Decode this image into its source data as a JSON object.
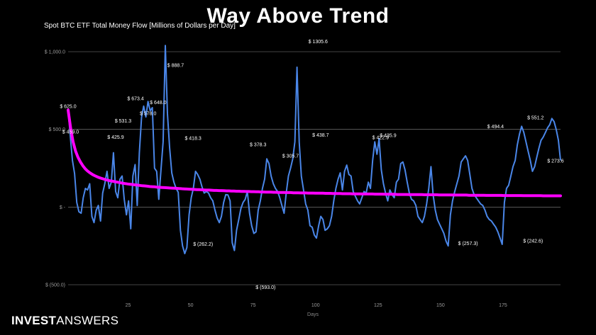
{
  "headline": "Way Above Trend",
  "subtitle": "Spot BTC ETF Total Money Flow [Millions of Dollars per Day]",
  "branding": {
    "part1": "INVEST",
    "part2": "ANSWERS"
  },
  "colors": {
    "background": "#000000",
    "flow": "#4a86e8",
    "trend": "#ff00ff",
    "grid": "#8a8a8a"
  },
  "chart_data": {
    "type": "line",
    "xlabel": "Days",
    "ylabel": "",
    "x_ticks": [
      25,
      50,
      75,
      100,
      125,
      150,
      175
    ],
    "y_ticks": [
      {
        "value": 1000,
        "label": "$ 1,000.0"
      },
      {
        "value": 500,
        "label": "$ 500.0"
      },
      {
        "value": 0,
        "label": "$ - "
      },
      {
        "value": -500,
        "label": "$ (500.0)"
      }
    ],
    "xlim": [
      1,
      198
    ],
    "ylim": [
      -500,
      1000
    ],
    "grid": true,
    "series": [
      {
        "style": "line",
        "values": [
          625.0,
          459.0,
          300,
          215.6,
          30,
          -30,
          -40,
          60,
          120,
          110,
          150,
          -60,
          -100,
          -20,
          10,
          -90,
          90,
          150,
          230,
          120,
          160,
          350,
          100,
          60,
          180,
          200,
          50,
          -50,
          40,
          -140,
          200,
          273.2,
          10,
          350,
          578,
          650,
          580,
          680,
          620,
          640,
          250,
          230,
          50,
          240,
          420,
          1080,
          600,
          380,
          220,
          160,
          120,
          95,
          -150,
          -250,
          -300,
          -260,
          -50,
          60,
          120,
          230,
          210,
          180,
          130,
          90,
          100,
          90,
          60,
          40,
          -20,
          -70,
          -100,
          -60,
          30,
          80,
          78,
          40,
          -230,
          -280,
          -150,
          -80,
          -10,
          30,
          50,
          100,
          -40,
          -120,
          -170,
          -160,
          -20,
          40,
          120,
          180,
          310,
          280,
          200,
          150,
          120,
          100,
          60,
          10,
          -40,
          90,
          200,
          250,
          310,
          420,
          900,
          420,
          200,
          110,
          20,
          -20,
          -120,
          -130,
          -180,
          -200,
          -120,
          -60,
          -80,
          -150,
          -140,
          -120,
          -60,
          40,
          120,
          180,
          220,
          110,
          230,
          270,
          210,
          200,
          100,
          70,
          40,
          20,
          60,
          100,
          90,
          160,
          120,
          300,
          420,
          340,
          440,
          240,
          150,
          90,
          40,
          110,
          80,
          60,
          160,
          180,
          280,
          290,
          240,
          160,
          90,
          50,
          40,
          10,
          -60,
          -80,
          -100,
          -60,
          20,
          120,
          260,
          80,
          -20,
          -80,
          -110,
          -140,
          -170,
          -220,
          -250,
          -50,
          40,
          100,
          150,
          200,
          290,
          310,
          330,
          300,
          210,
          120,
          80,
          60,
          40,
          20,
          10,
          -20,
          -60,
          -80,
          -90,
          -110,
          -130,
          -160,
          -200,
          -240,
          30,
          120,
          140,
          200,
          260,
          300,
          400,
          470,
          520,
          480,
          420,
          360,
          300,
          230,
          260,
          320,
          380,
          430,
          450,
          480,
          510,
          530,
          570,
          550,
          500,
          430,
          300
        ]
      },
      {
        "style": "trend",
        "values": [
          625.0,
          510,
          420,
          360,
          320,
          290,
          265,
          245,
          230,
          218,
          208,
          200,
          193,
          187,
          182,
          177,
          173,
          169,
          166,
          163,
          160,
          157,
          154,
          151,
          149,
          147,
          145,
          143,
          141,
          139,
          137,
          136,
          134,
          132,
          131,
          130,
          128,
          127,
          126,
          125,
          124,
          123,
          122,
          121,
          120,
          119,
          118,
          117,
          116,
          115,
          114,
          113,
          112,
          112,
          111,
          110,
          109,
          109,
          108,
          107,
          107,
          106,
          106,
          105,
          104,
          104,
          103,
          103,
          102,
          102,
          101,
          101,
          100,
          100,
          99,
          99,
          98,
          98,
          97,
          97,
          96,
          96,
          96,
          95,
          95,
          94,
          94,
          94,
          93,
          93,
          93,
          92,
          92,
          92,
          91,
          91,
          91,
          90,
          90,
          90,
          89,
          89,
          89,
          89,
          88,
          88,
          88,
          87,
          87,
          87,
          87,
          86,
          86,
          86,
          86,
          85,
          85,
          85,
          85,
          84,
          84,
          84,
          84,
          84,
          83,
          83,
          83,
          83,
          82,
          82,
          82,
          82,
          82,
          81,
          81,
          81,
          81,
          81,
          80,
          80,
          80,
          80,
          80,
          80,
          79,
          79,
          79,
          79,
          79,
          79,
          78,
          78,
          78,
          78,
          78,
          78,
          77,
          77,
          77,
          77,
          77,
          77,
          76,
          76,
          76,
          76,
          76,
          76,
          76,
          75,
          75,
          75,
          75,
          75,
          75,
          75,
          74,
          74,
          74,
          74,
          74,
          74,
          74,
          74,
          73,
          73,
          73,
          73,
          73,
          73,
          73,
          73,
          72,
          72,
          72,
          72,
          72,
          72,
          72,
          72
        ]
      }
    ],
    "annotations": [
      {
        "x": 1,
        "y": 625.0,
        "text": "$ 625.0"
      },
      {
        "x": 2,
        "y": 459.0,
        "text": "$ 459.0"
      },
      {
        "x": 20,
        "y": 425.9,
        "text": "$ 425.9"
      },
      {
        "x": 23,
        "y": 531.3,
        "text": "$ 531.3"
      },
      {
        "x": 28,
        "y": 673.4,
        "text": "$ 673.4"
      },
      {
        "x": 33,
        "y": 578,
        "text": "$ 578.0"
      },
      {
        "x": 37,
        "y": 648.0,
        "text": "$ 648.0"
      },
      {
        "x": 44,
        "y": 888.7,
        "text": "$ 888.7"
      },
      {
        "x": 51,
        "y": 418.3,
        "text": "$ 418.3"
      },
      {
        "x": 77,
        "y": 378.3,
        "text": "$ 378.3"
      },
      {
        "x": 90,
        "y": 305.7,
        "text": "$ 305.7"
      },
      {
        "x": 101,
        "y": 1305.6,
        "text": "$ 1305.6"
      },
      {
        "x": 102,
        "y": 438.7,
        "text": "$ 438.7"
      },
      {
        "x": 126,
        "y": 422.9,
        "text": "$ 422.9"
      },
      {
        "x": 129,
        "y": 435.9,
        "text": "$ 435.9"
      },
      {
        "x": 172,
        "y": 494.4,
        "text": "$ 494.4"
      },
      {
        "x": 188,
        "y": 551.2,
        "text": "$ 551.2"
      },
      {
        "x": 196,
        "y": 273.6,
        "text": "$ 273.6"
      },
      {
        "x": 55,
        "y": -262.2,
        "text": "$ (262.2)"
      },
      {
        "x": 80,
        "y": -593.0,
        "text": "$ (593.0)"
      },
      {
        "x": 161,
        "y": -257.3,
        "text": "$ (257.3)"
      },
      {
        "x": 187,
        "y": -242.6,
        "text": "$ (242.6)"
      }
    ]
  }
}
